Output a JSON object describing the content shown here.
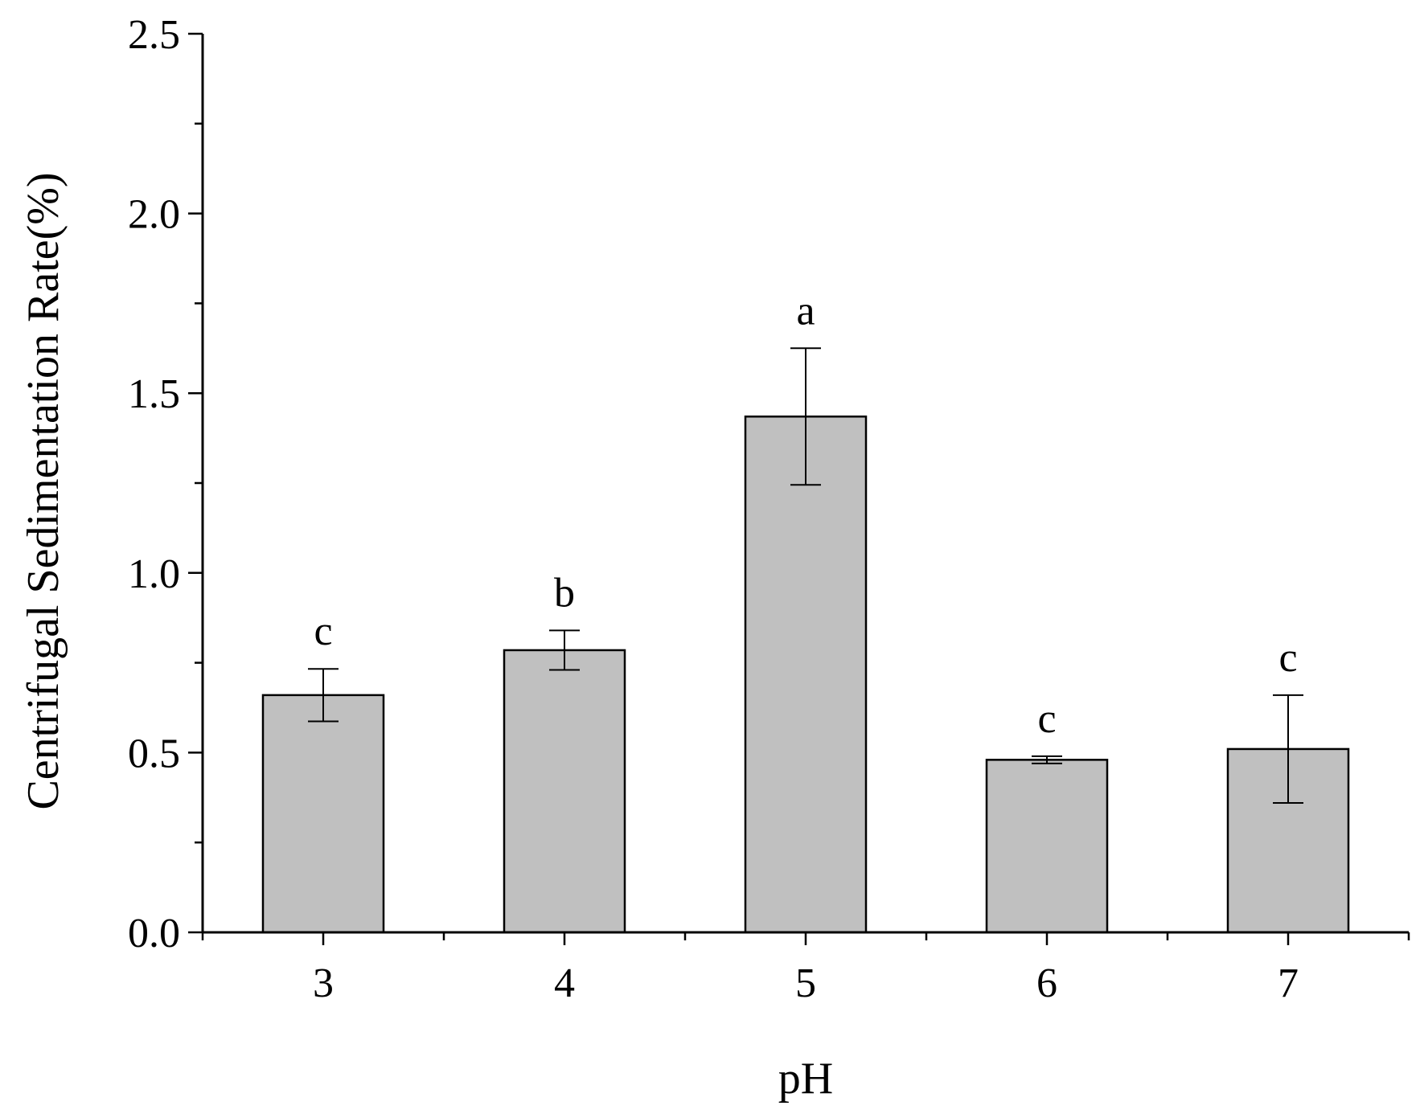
{
  "chart_data": {
    "type": "bar",
    "title": "",
    "xlabel": "pH",
    "ylabel": "Centrifugal Sedimentation Rate(%)",
    "categories": [
      "3",
      "4",
      "5",
      "6",
      "7"
    ],
    "values": [
      0.66,
      0.785,
      1.435,
      0.48,
      0.51
    ],
    "error": [
      0.073,
      0.055,
      0.19,
      0.01,
      0.15
    ],
    "significance_labels": [
      "c",
      "b",
      "a",
      "c",
      "c"
    ],
    "ylim": [
      0,
      2.5
    ],
    "yticks": [
      "0.0",
      "0.5",
      "1.0",
      "1.5",
      "2.0",
      "2.5"
    ],
    "grid": false,
    "legend": "none",
    "colors": {
      "bar_fill": "#c0c0c0",
      "bar_stroke": "#000000",
      "axis": "#000000"
    }
  }
}
